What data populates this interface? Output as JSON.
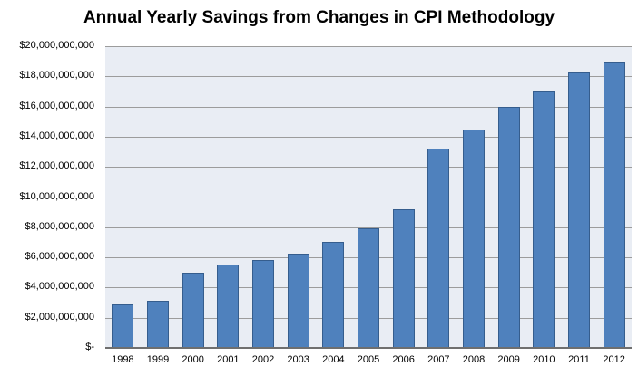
{
  "title": "Annual Yearly Savings from Changes in CPI Methodology",
  "colors": {
    "bar_fill": "#4F81BD",
    "bar_border": "#355D8D",
    "plot_background": "#E9EDF4",
    "gridline": "#9C9C9C",
    "axis_line": "#6F6F6F",
    "text": "#000000",
    "page_background": "#FFFFFF"
  },
  "chart_data": {
    "type": "bar",
    "title": "Annual Yearly Savings from Changes in CPI Methodology",
    "categories": [
      "1998",
      "1999",
      "2000",
      "2001",
      "2002",
      "2003",
      "2004",
      "2005",
      "2006",
      "2007",
      "2008",
      "2009",
      "2010",
      "2011",
      "2012"
    ],
    "values": [
      2900000000,
      3100000000,
      5000000000,
      5500000000,
      5800000000,
      6250000000,
      7000000000,
      7900000000,
      9200000000,
      13200000000,
      14450000000,
      16000000000,
      17050000000,
      18250000000,
      19000000000
    ],
    "series_name": "Annual Yearly Savings",
    "xlabel": "",
    "ylabel": "",
    "ylim": [
      0,
      20000000000
    ],
    "y_tick_step": 2000000000,
    "y_tick_labels": [
      "$-",
      "$2,000,000,000",
      "$4,000,000,000",
      "$6,000,000,000",
      "$8,000,000,000",
      "$10,000,000,000",
      "$12,000,000,000",
      "$14,000,000,000",
      "$16,000,000,000",
      "$18,000,000,000",
      "$20,000,000,000"
    ],
    "grid": true,
    "legend": false
  }
}
